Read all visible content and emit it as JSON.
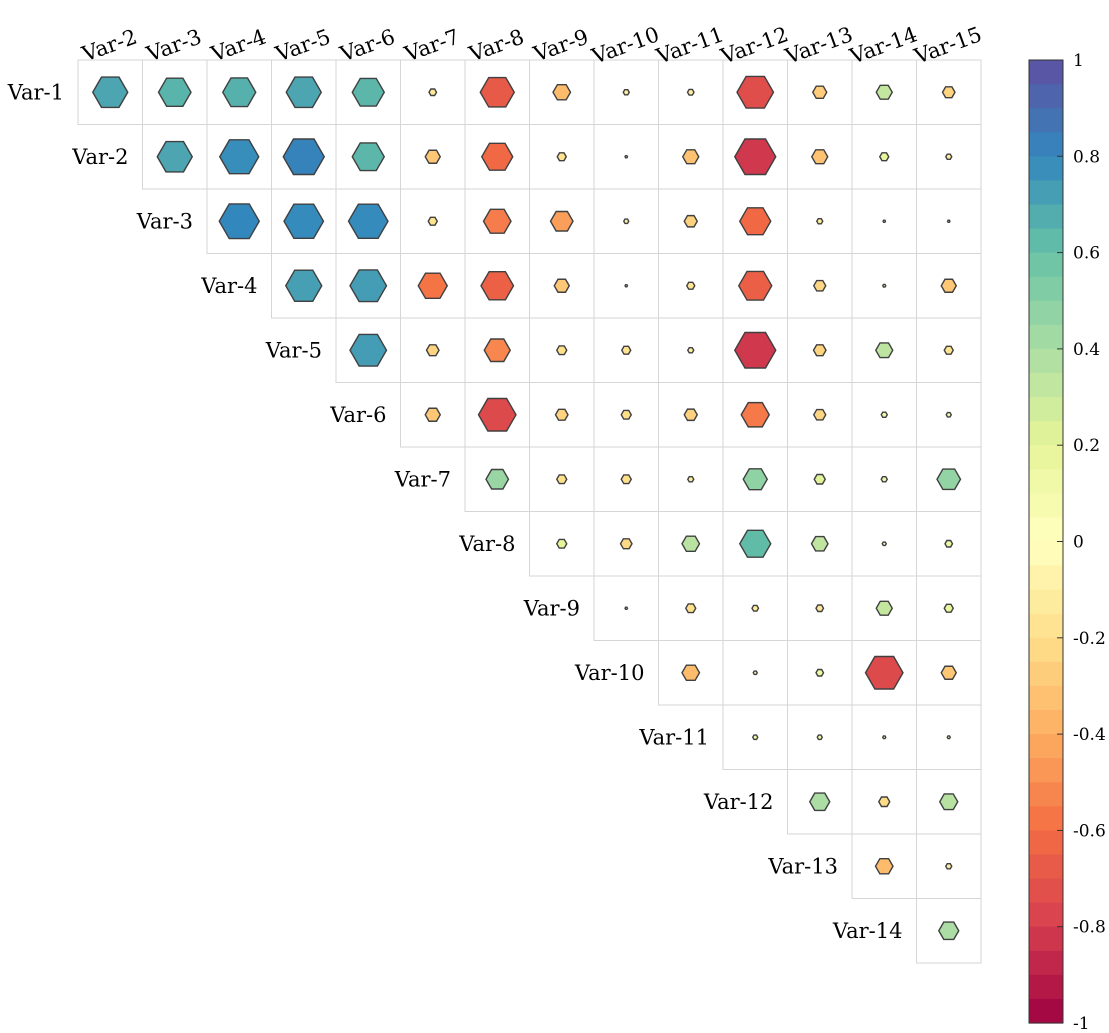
{
  "chart_data": {
    "type": "heatmap",
    "style": "upper-triangular correlation matrix, hexagon glyphs (size and color encode value)",
    "row_labels": [
      "Var-1",
      "Var-2",
      "Var-3",
      "Var-4",
      "Var-5",
      "Var-6",
      "Var-7",
      "Var-8",
      "Var-9",
      "Var-10",
      "Var-11",
      "Var-12",
      "Var-13",
      "Var-14"
    ],
    "col_labels": [
      "Var-2",
      "Var-3",
      "Var-4",
      "Var-5",
      "Var-6",
      "Var-7",
      "Var-8",
      "Var-9",
      "Var-10",
      "Var-11",
      "Var-12",
      "Var-13",
      "Var-14",
      "Var-15"
    ],
    "matrix": [
      [
        0.7,
        0.65,
        0.66,
        0.7,
        0.64,
        -0.15,
        -0.68,
        -0.35,
        -0.12,
        -0.13,
        -0.73,
        -0.28,
        0.32,
        -0.25
      ],
      [
        null,
        0.7,
        0.78,
        0.82,
        0.64,
        -0.3,
        -0.62,
        -0.18,
        -0.05,
        -0.32,
        -0.82,
        -0.32,
        0.18,
        -0.12
      ],
      [
        null,
        null,
        0.8,
        0.79,
        0.79,
        -0.18,
        -0.55,
        -0.45,
        -0.1,
        -0.26,
        -0.62,
        -0.12,
        0.03,
        0.03
      ],
      [
        null,
        null,
        null,
        0.72,
        0.73,
        -0.58,
        -0.65,
        -0.3,
        0.03,
        -0.16,
        -0.66,
        -0.24,
        -0.06,
        -0.3
      ],
      [
        null,
        null,
        null,
        null,
        0.73,
        -0.25,
        -0.52,
        -0.2,
        -0.18,
        -0.12,
        -0.82,
        -0.25,
        0.34,
        -0.18
      ],
      [
        null,
        null,
        null,
        null,
        null,
        -0.3,
        -0.75,
        -0.25,
        -0.2,
        -0.26,
        -0.56,
        -0.24,
        0.12,
        0.1
      ],
      [
        null,
        null,
        null,
        null,
        null,
        null,
        0.45,
        -0.2,
        -0.2,
        -0.12,
        0.48,
        0.22,
        0.12,
        0.47
      ],
      [
        null,
        null,
        null,
        null,
        null,
        null,
        null,
        0.2,
        -0.23,
        0.35,
        0.62,
        0.33,
        0.08,
        0.15
      ],
      [
        null,
        null,
        null,
        null,
        null,
        null,
        null,
        null,
        -0.05,
        -0.2,
        -0.13,
        -0.15,
        0.32,
        0.18
      ],
      [
        null,
        null,
        null,
        null,
        null,
        null,
        null,
        null,
        null,
        -0.35,
        -0.08,
        0.15,
        -0.75,
        -0.3
      ],
      [
        null,
        null,
        null,
        null,
        null,
        null,
        null,
        null,
        null,
        null,
        0.1,
        0.1,
        0.06,
        0.06
      ],
      [
        null,
        null,
        null,
        null,
        null,
        null,
        null,
        null,
        null,
        null,
        null,
        0.4,
        -0.22,
        0.36
      ],
      [
        null,
        null,
        null,
        null,
        null,
        null,
        null,
        null,
        null,
        null,
        null,
        null,
        -0.35,
        -0.12
      ],
      [
        null,
        null,
        null,
        null,
        null,
        null,
        null,
        null,
        null,
        null,
        null,
        null,
        null,
        0.4
      ]
    ],
    "colorbar": {
      "ticks": [
        "1",
        "0.8",
        "0.6",
        "0.4",
        "0.2",
        "0",
        "-0.2",
        "-0.4",
        "-0.6",
        "-0.8",
        "-1"
      ],
      "range": [
        -1,
        1
      ],
      "colormap": "Spectral (red at -1, yellow at 0, blue/purple at +1)",
      "placement": "right"
    },
    "title": "",
    "xlabel": "",
    "ylabel": ""
  },
  "colors": {
    "cell_border": "#d6d6d6",
    "hex_edge": "#404040",
    "spectral": [
      "#9e0142",
      "#d53e4f",
      "#f46d43",
      "#fdae61",
      "#fee08b",
      "#ffffbf",
      "#e6f598",
      "#abdda4",
      "#66c2a5",
      "#3288bd",
      "#5e4fa2"
    ]
  }
}
